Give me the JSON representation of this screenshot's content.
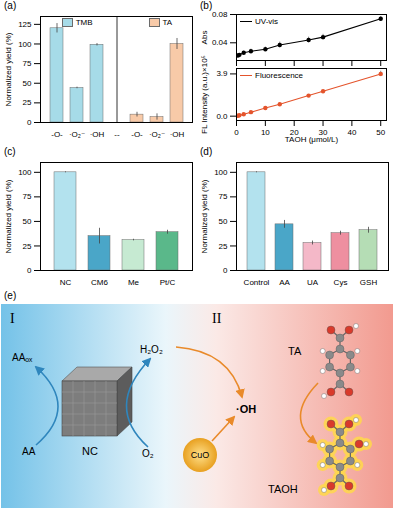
{
  "chart_data": [
    {
      "type": "bar",
      "title": "(a)",
      "categories": [
        "-O-",
        "·O₂⁻",
        "·OH",
        "--",
        "-O-",
        "·O₂⁻",
        "·OH"
      ],
      "series": [
        {
          "name": "TMB",
          "color": "#a6dbe8",
          "values": [
            120,
            44,
            99,
            null,
            null,
            null,
            null
          ],
          "errors": [
            6,
            1,
            1.5,
            null,
            null,
            null,
            null
          ]
        },
        {
          "name": "TA",
          "color": "#f8caa8",
          "values": [
            null,
            null,
            null,
            null,
            10,
            7,
            100
          ],
          "errors": [
            null,
            null,
            null,
            null,
            3,
            4,
            7
          ]
        }
      ],
      "y_label": "Normalized yield (%)",
      "ylim": [
        0,
        135
      ],
      "yticks": [
        0,
        25,
        50,
        75,
        100,
        125
      ],
      "legend": "top"
    },
    {
      "type": "line",
      "title": "(b)",
      "x": [
        0.5,
        1,
        2.5,
        5,
        10,
        15,
        25,
        30,
        50
      ],
      "series": [
        {
          "name": "UV-vis",
          "color": "#000000",
          "marker": "circle",
          "values": [
            0.022,
            0.023,
            0.026,
            0.028,
            0.031,
            0.037,
            0.044,
            0.048,
            0.074
          ],
          "errors": [
            0.002,
            0.002,
            0.002,
            0.003,
            0.003,
            0.004,
            0.004,
            0.004,
            0.003
          ]
        }
      ],
      "y_label": "Abs",
      "xlim": [
        0,
        52
      ],
      "xticks": [
        0,
        10,
        20,
        30,
        40,
        50
      ],
      "ylim": [
        0.015,
        0.08
      ],
      "yticks": [
        0.04,
        0.08
      ],
      "legend": "top-left",
      "tick_labels": "y"
    },
    {
      "type": "line",
      "x": [
        0.5,
        1,
        2.5,
        5,
        10,
        15,
        25,
        30,
        50
      ],
      "series": [
        {
          "name": "Fluorescence",
          "color": "#e4542c",
          "marker": "circle",
          "values": [
            0.04,
            0.08,
            0.18,
            0.37,
            0.75,
            1.1,
            1.9,
            2.3,
            3.9
          ],
          "errors": [
            0.05,
            0.05,
            0.05,
            0.08,
            0.08,
            0.1,
            0.1,
            0.1,
            0.25
          ]
        }
      ],
      "x_label": "TAOH (μmol/L)",
      "y_label": "FL Intensity (a.u.)×10⁵",
      "xlim": [
        0,
        52
      ],
      "xticks": [
        0,
        10,
        20,
        30,
        40,
        50
      ],
      "ylim": [
        -0.4,
        4.4
      ],
      "yticks": [
        {
          "value": 0,
          "label": "0.0"
        },
        3.9
      ],
      "legend": "top-left"
    },
    {
      "type": "bar",
      "title": "(c)",
      "categories": [
        "NC",
        "CM6",
        "Me",
        "Pt/C"
      ],
      "values": [
        100,
        35,
        31,
        39
      ],
      "errors": [
        0.5,
        8,
        0.8,
        2
      ],
      "colors": [
        "#b3e2ee",
        "#4aa6c8",
        "#c6ead2",
        "#5ab88a"
      ],
      "y_label": "Normalized yield (%)",
      "ylim": [
        0,
        110
      ],
      "yticks": [
        0,
        25,
        50,
        75,
        100
      ]
    },
    {
      "type": "bar",
      "title": "(d)",
      "categories": [
        "Control",
        "AA",
        "UA",
        "Cys",
        "GSH"
      ],
      "values": [
        100,
        47,
        28,
        38,
        41
      ],
      "errors": [
        0.5,
        4,
        2,
        2,
        3
      ],
      "colors": [
        "#b3e2ee",
        "#4aa6c8",
        "#f4b8c8",
        "#ee8fa0",
        "#b5ddb5"
      ],
      "y_label": "Normalized yield (%)",
      "ylim": [
        0,
        110
      ],
      "yticks": [
        0,
        25,
        50,
        75,
        100
      ]
    }
  ],
  "diagram": {
    "title": "(e)",
    "sections": [
      "I",
      "II"
    ],
    "nodes": {
      "nc": "NC",
      "aa": "AA",
      "aa_ox": "AAₒₓ",
      "o2": "O₂",
      "h2o2": "H₂O₂",
      "cuo": "CuO",
      "oh": "·OH",
      "ta": "TA",
      "taoh": "TAOH"
    }
  }
}
